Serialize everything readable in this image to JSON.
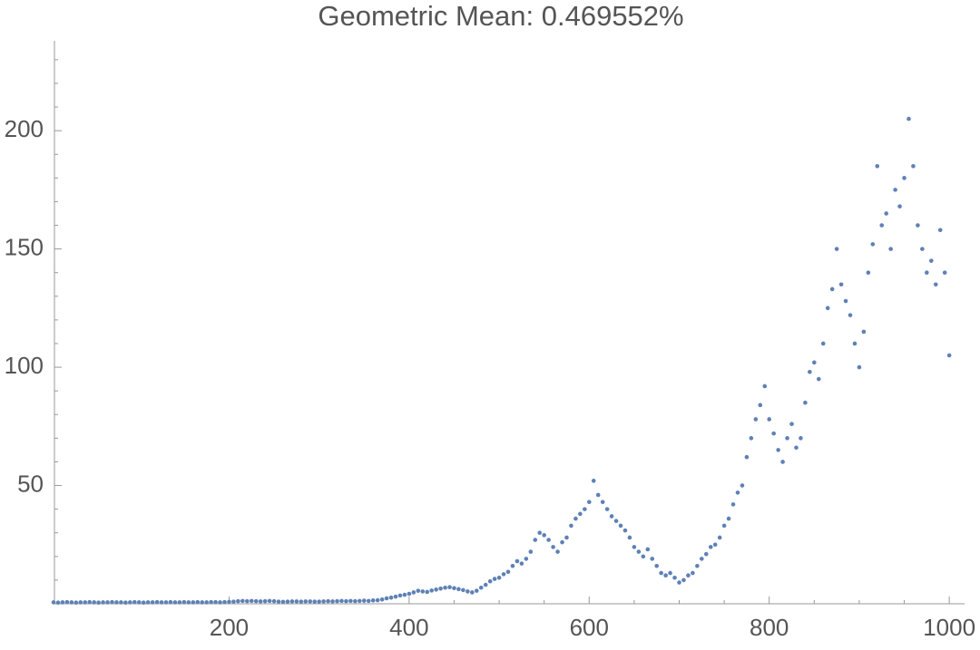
{
  "chart_data": {
    "type": "scatter",
    "title": "Geometric Mean: 0.469552%",
    "color": "#5e81b5",
    "xlim": [
      6,
      1017
    ],
    "ylim": [
      0,
      238
    ],
    "xticks": [
      200,
      400,
      600,
      800,
      1000
    ],
    "yticks": [
      50,
      100,
      150,
      200
    ],
    "xminorticks": [
      50,
      100,
      150,
      250,
      300,
      350,
      450,
      500,
      550,
      650,
      700,
      750,
      850,
      900,
      950
    ],
    "yminorticks": [
      10,
      20,
      30,
      40,
      60,
      70,
      80,
      90,
      110,
      120,
      130,
      140,
      160,
      170,
      180,
      190,
      210,
      220,
      230
    ],
    "x": [
      5,
      10,
      15,
      20,
      25,
      30,
      35,
      40,
      45,
      50,
      55,
      60,
      65,
      70,
      75,
      80,
      85,
      90,
      95,
      100,
      105,
      110,
      115,
      120,
      125,
      130,
      135,
      140,
      145,
      150,
      155,
      160,
      165,
      170,
      175,
      180,
      185,
      190,
      195,
      200,
      205,
      210,
      215,
      220,
      225,
      230,
      235,
      240,
      245,
      250,
      255,
      260,
      265,
      270,
      275,
      280,
      285,
      290,
      295,
      300,
      305,
      310,
      315,
      320,
      325,
      330,
      335,
      340,
      345,
      350,
      355,
      360,
      365,
      370,
      375,
      380,
      385,
      390,
      395,
      400,
      405,
      410,
      415,
      420,
      425,
      430,
      435,
      440,
      445,
      450,
      455,
      460,
      465,
      470,
      475,
      480,
      485,
      490,
      495,
      500,
      505,
      510,
      515,
      520,
      525,
      530,
      535,
      540,
      545,
      550,
      555,
      560,
      565,
      570,
      575,
      580,
      585,
      590,
      595,
      600,
      605,
      610,
      615,
      620,
      625,
      630,
      635,
      640,
      645,
      650,
      655,
      660,
      665,
      670,
      675,
      680,
      685,
      690,
      695,
      700,
      705,
      710,
      715,
      720,
      725,
      730,
      735,
      740,
      745,
      750,
      755,
      760,
      765,
      770,
      775,
      780,
      785,
      790,
      795,
      800,
      805,
      810,
      815,
      820,
      825,
      830,
      835,
      840,
      845,
      850,
      855,
      860,
      865,
      870,
      875,
      880,
      885,
      890,
      895,
      900,
      905,
      910,
      915,
      920,
      925,
      930,
      935,
      940,
      945,
      950,
      955,
      960,
      965,
      970,
      975,
      980,
      985,
      990,
      995,
      1000
    ],
    "values": [
      0.6,
      0.5,
      0.6,
      0.7,
      0.6,
      0.5,
      0.6,
      0.6,
      0.7,
      0.6,
      0.5,
      0.6,
      0.6,
      0.7,
      0.6,
      0.6,
      0.5,
      0.6,
      0.7,
      0.6,
      0.5,
      0.6,
      0.6,
      0.7,
      0.6,
      0.6,
      0.7,
      0.6,
      0.6,
      0.7,
      0.6,
      0.6,
      0.7,
      0.6,
      0.6,
      0.7,
      0.7,
      0.6,
      0.7,
      0.8,
      0.9,
      1.1,
      1.2,
      1.1,
      1.2,
      1.1,
      1.0,
      1.1,
      1.2,
      1.1,
      0.9,
      0.8,
      0.9,
      1.0,
      1.0,
      0.9,
      1.0,
      1.0,
      0.9,
      0.9,
      1.0,
      1.1,
      1.0,
      1.1,
      1.2,
      1.1,
      1.2,
      1.1,
      1.2,
      1.3,
      1.2,
      1.4,
      1.5,
      1.8,
      2.3,
      2.6,
      3.0,
      3.5,
      3.8,
      4.2,
      4.8,
      5.5,
      5.2,
      5.0,
      5.6,
      6.0,
      6.4,
      6.8,
      7.0,
      6.6,
      6.2,
      5.8,
      5.2,
      4.8,
      5.5,
      6.8,
      8.0,
      9.5,
      10.5,
      11.0,
      12.5,
      13.5,
      16,
      18,
      17,
      19,
      22,
      27,
      30,
      29,
      27,
      24,
      22,
      26,
      28,
      33,
      36,
      38,
      40,
      43,
      52,
      46,
      43,
      40,
      37,
      35,
      33,
      31,
      28,
      24,
      22,
      20,
      23,
      19,
      16,
      13,
      12,
      13,
      11,
      9,
      10,
      12,
      13,
      16,
      19,
      21,
      24,
      25,
      28,
      33,
      36,
      42,
      47,
      50,
      62,
      70,
      78,
      84,
      92,
      78,
      72,
      65,
      60,
      70,
      76,
      66,
      70,
      85,
      98,
      102,
      95,
      110,
      125,
      133,
      150,
      135,
      128,
      122,
      110,
      100,
      115,
      140,
      152,
      185,
      160,
      165,
      150,
      175,
      168,
      180,
      205,
      185,
      160,
      150,
      140,
      145,
      135,
      158,
      140,
      105
    ]
  }
}
